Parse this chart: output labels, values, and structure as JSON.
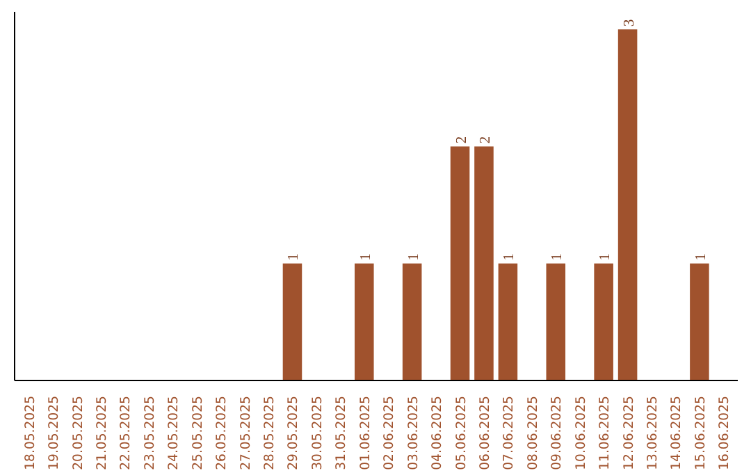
{
  "chart_data": {
    "type": "bar",
    "categories": [
      "18.05.2025",
      "19.05.2025",
      "20.05.2025",
      "21.05.2025",
      "22.05.2025",
      "23.05.2025",
      "24.05.2025",
      "25.05.2025",
      "26.05.2025",
      "27.05.2025",
      "28.05.2025",
      "29.05.2025",
      "30.05.2025",
      "31.05.2025",
      "01.06.2025",
      "02.06.2025",
      "03.06.2025",
      "04.06.2025",
      "05.06.2025",
      "06.06.2025",
      "07.06.2025",
      "08.06.2025",
      "09.06.2025",
      "10.06.2025",
      "11.06.2025",
      "12.06.2025",
      "13.06.2025",
      "14.06.2025",
      "15.06.2025",
      "16.06.2025"
    ],
    "values": [
      0,
      0,
      0,
      0,
      0,
      0,
      0,
      0,
      0,
      0,
      0,
      1,
      0,
      0,
      1,
      0,
      1,
      0,
      2,
      2,
      1,
      0,
      1,
      0,
      1,
      3,
      0,
      0,
      1,
      0
    ],
    "value_labels": [
      null,
      null,
      null,
      null,
      null,
      null,
      null,
      null,
      null,
      null,
      null,
      "1",
      null,
      null,
      "1",
      null,
      "1",
      null,
      "2",
      "2",
      "1",
      null,
      "1",
      null,
      "1",
      "3",
      null,
      null,
      "1",
      null
    ],
    "color": "#a0522d",
    "grid": false,
    "tick_labels": "x"
  }
}
